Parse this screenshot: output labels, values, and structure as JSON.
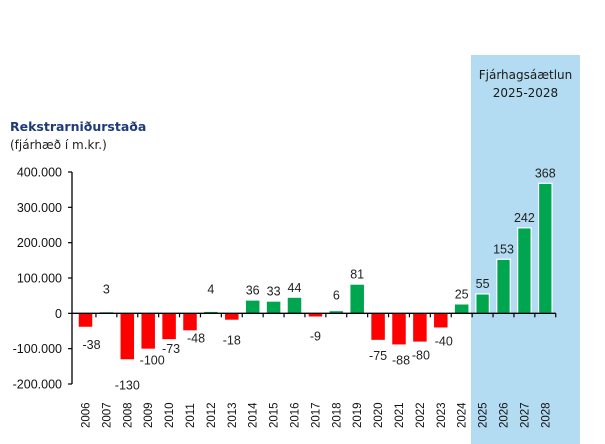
{
  "chart_data": {
    "type": "bar",
    "title": "Rekstrarniðurstaða",
    "subtitle": "(fjárhæð í m.kr.)",
    "xlabel": "",
    "ylabel": "",
    "ylim": [
      -200000,
      400000
    ],
    "yticks": [
      400000,
      300000,
      200000,
      100000,
      0,
      -100000,
      -200000
    ],
    "ytick_labels": [
      "400.000",
      "300.000",
      "200.000",
      "100.000",
      "0",
      "-100.000",
      "-200.000"
    ],
    "grid": false,
    "categories": [
      "2006",
      "2007",
      "2008",
      "2009",
      "2010",
      "2011",
      "2012",
      "2013",
      "2014",
      "2015",
      "2016",
      "2017",
      "2018",
      "2019",
      "2020",
      "2021",
      "2022",
      "2023",
      "2024",
      "2025",
      "2026",
      "2027",
      "2028"
    ],
    "values": [
      -38000,
      3000,
      -130000,
      -100000,
      -73000,
      -48000,
      4000,
      -18000,
      36000,
      33000,
      44000,
      -9000,
      6000,
      81000,
      -75000,
      -88000,
      -80000,
      -40000,
      25000,
      55000,
      153000,
      242000,
      368000
    ],
    "data_labels": [
      "-38",
      "3",
      "-130",
      "-100",
      "-73",
      "-48",
      "4",
      "-18",
      "36",
      "33",
      "44",
      "-9",
      "6",
      "81",
      "-75",
      "-88",
      "-80",
      "-40",
      "25",
      "55",
      "153",
      "242",
      "368"
    ],
    "colors": {
      "positive": "#00a550",
      "negative": "#ff0000",
      "forecast_panel": "#b3dcf2",
      "axis": "#000000"
    },
    "highlight_region": {
      "label_line1": "Fjárhagsáætlun",
      "label_line2": "2025-2028",
      "from_category": "2025",
      "to_category": "2028"
    }
  }
}
